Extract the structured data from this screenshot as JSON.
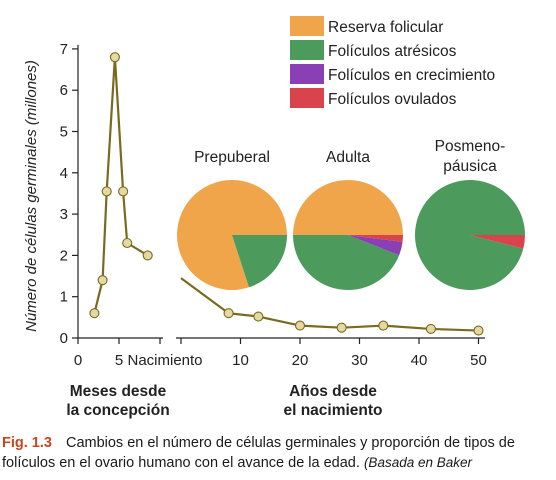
{
  "figure": {
    "number": "Fig. 1.3",
    "caption": "Cambios en el número de células germinales y proporción de tipos de folículos en el ovario humano con el avance de la edad.",
    "source": "(Basada en Baker"
  },
  "colors": {
    "line": "#7a6a1e",
    "marker_fill": "#e3d9a3",
    "axis": "#222222",
    "reserva": "#f0a54a",
    "atresicos": "#4c9a5c",
    "crecimiento": "#8a3fb5",
    "ovulados": "#d9434c",
    "caption_number": "#c8461c"
  },
  "chart_data": [
    {
      "type": "line",
      "ylabel": "Número de células germinales (millones)",
      "ylim": [
        0,
        7
      ],
      "yticks": [
        "0",
        "1",
        "2",
        "3",
        "4",
        "5",
        "6",
        "7"
      ],
      "xticks_prenatal": [
        "0",
        "5"
      ],
      "xticks_postnatal": [
        "Nacimiento",
        "10",
        "20",
        "30",
        "40",
        "50"
      ],
      "xlabel_prenatal": [
        "Meses desde",
        "la concepción"
      ],
      "xlabel_postnatal": [
        "Años desde",
        "el nacimiento"
      ],
      "series": [
        {
          "segment": "prenatal",
          "x_unit": "meses desde la concepción",
          "x": [
            2,
            3,
            3.5,
            4.5,
            5.5,
            6,
            8.5
          ],
          "y": [
            0.6,
            1.4,
            3.55,
            6.8,
            3.55,
            2.3,
            2.0
          ]
        },
        {
          "segment": "postnatal",
          "x_unit": "años desde el nacimiento",
          "x": [
            0,
            8,
            13,
            20,
            27,
            34,
            42,
            50
          ],
          "y": [
            1.45,
            0.6,
            0.52,
            0.3,
            0.25,
            0.3,
            0.22,
            0.18
          ]
        }
      ]
    },
    {
      "type": "pie",
      "legend": [
        "Reserva folicular",
        "Folículos atrésicos",
        "Folículos en crecimiento",
        "Folículos ovulados"
      ],
      "legend_position": "top-right",
      "pies": [
        {
          "title": "Prepuberal",
          "values": [
            80,
            20,
            0,
            0
          ]
        },
        {
          "title": "Adulta",
          "values": [
            50,
            44,
            4,
            2
          ]
        },
        {
          "title": "Posmeno-\npáusica",
          "values": [
            0,
            96,
            0,
            4
          ]
        }
      ]
    }
  ]
}
